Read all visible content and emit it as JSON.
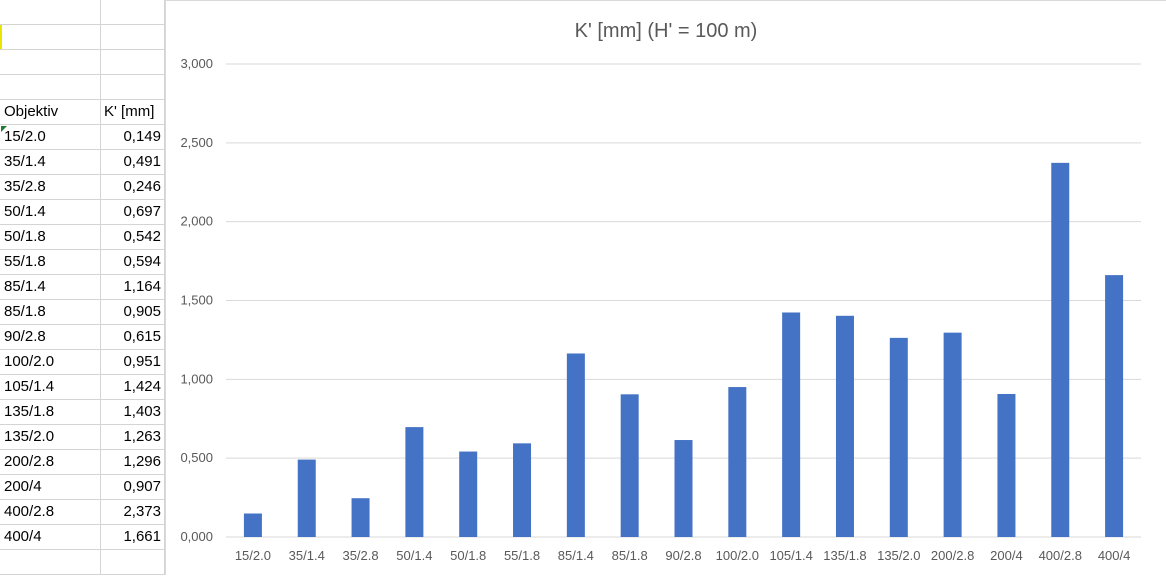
{
  "sheet": {
    "header": {
      "col_a": "Objektiv",
      "col_b": "K' [mm]"
    },
    "rows": [
      {
        "obj": "15/2.0",
        "val": "0,149"
      },
      {
        "obj": "35/1.4",
        "val": "0,491"
      },
      {
        "obj": "35/2.8",
        "val": "0,246"
      },
      {
        "obj": "50/1.4",
        "val": "0,697"
      },
      {
        "obj": "50/1.8",
        "val": "0,542"
      },
      {
        "obj": "55/1.8",
        "val": "0,594"
      },
      {
        "obj": "85/1.4",
        "val": "1,164"
      },
      {
        "obj": "85/1.8",
        "val": "0,905"
      },
      {
        "obj": "90/2.8",
        "val": "0,615"
      },
      {
        "obj": "100/2.0",
        "val": "0,951"
      },
      {
        "obj": "105/1.4",
        "val": "1,424"
      },
      {
        "obj": "135/1.8",
        "val": "1,403"
      },
      {
        "obj": "135/2.0",
        "val": "1,263"
      },
      {
        "obj": "200/2.8",
        "val": "1,296"
      },
      {
        "obj": "200/4",
        "val": "0,907"
      },
      {
        "obj": "400/2.8",
        "val": "2,373"
      },
      {
        "obj": "400/4",
        "val": "1,661"
      }
    ]
  },
  "chart_data": {
    "type": "bar",
    "title": "K' [mm] (H' = 100 m)",
    "xlabel": "",
    "ylabel": "",
    "categories": [
      "15/2.0",
      "35/1.4",
      "35/2.8",
      "50/1.4",
      "50/1.8",
      "55/1.8",
      "85/1.4",
      "85/1.8",
      "90/2.8",
      "100/2.0",
      "105/1.4",
      "135/1.8",
      "135/2.0",
      "200/2.8",
      "200/4",
      "400/2.8",
      "400/4"
    ],
    "values": [
      0.149,
      0.491,
      0.246,
      0.697,
      0.542,
      0.594,
      1.164,
      0.905,
      0.615,
      0.951,
      1.424,
      1.403,
      1.263,
      1.296,
      0.907,
      2.373,
      1.661
    ],
    "ylim": [
      0,
      3
    ],
    "yticks": [
      0,
      0.5,
      1,
      1.5,
      2,
      2.5,
      3
    ],
    "ytick_labels": [
      "0,000",
      "0,500",
      "1,000",
      "1,500",
      "2,000",
      "2,500",
      "3,000"
    ],
    "grid": true,
    "legend": "none",
    "bar_color": "#4472c4",
    "grid_color": "#d9d9d9"
  }
}
